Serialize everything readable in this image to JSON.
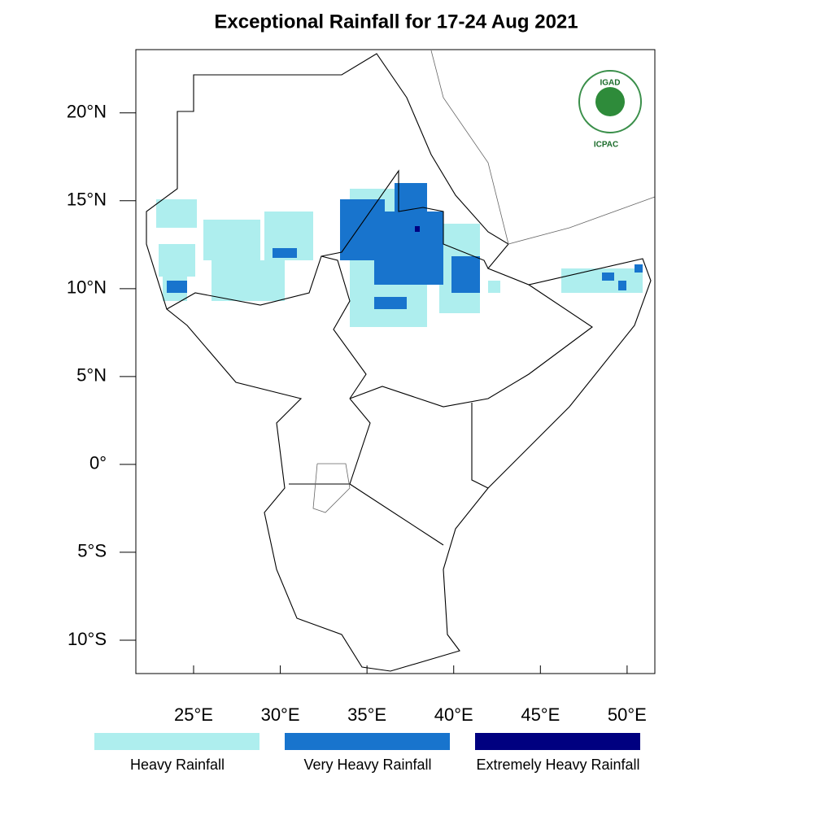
{
  "map": {
    "title": "Exceptional Rainfall for 17-24 Aug 2021",
    "xlim": [
      21.67,
      51.6
    ],
    "ylim": [
      -11.9,
      23.6
    ],
    "xticks": [
      {
        "value": 25,
        "label": "25°E"
      },
      {
        "value": 30,
        "label": "30°E"
      },
      {
        "value": 35,
        "label": "35°E"
      },
      {
        "value": 40,
        "label": "40°E"
      },
      {
        "value": 45,
        "label": "45°E"
      },
      {
        "value": 50,
        "label": "50°E"
      }
    ],
    "yticks": [
      {
        "value": 20,
        "label": "20°N"
      },
      {
        "value": 15,
        "label": "15°N"
      },
      {
        "value": 10,
        "label": "10°N"
      },
      {
        "value": 5,
        "label": "5°N"
      },
      {
        "value": 0,
        "label": "0°"
      },
      {
        "value": -5,
        "label": "5°S"
      },
      {
        "value": -10,
        "label": "10°S"
      }
    ],
    "legend": [
      {
        "name": "Heavy Rainfall",
        "color": "#aeeeee"
      },
      {
        "name": "Very Heavy Rainfall",
        "color": "#1874cd"
      },
      {
        "name": "Extremely Heavy Rainfall",
        "color": "#000080"
      }
    ],
    "logo": {
      "name": "IGAD",
      "subtitle": "ICPAC"
    }
  }
}
